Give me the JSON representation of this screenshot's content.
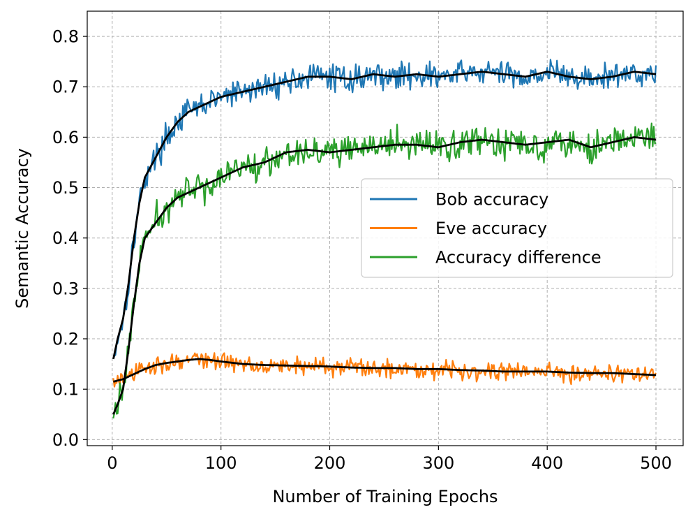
{
  "chart_data": {
    "type": "line",
    "title": "",
    "xlabel": "Number of Training Epochs",
    "ylabel": "Semantic Accuracy",
    "xlim": [
      -23,
      525
    ],
    "ylim": [
      -0.012,
      0.85
    ],
    "xticks": [
      0,
      100,
      200,
      300,
      400,
      500
    ],
    "xtick_labels": [
      "0",
      "100",
      "200",
      "300",
      "400",
      "500"
    ],
    "yticks": [
      0.0,
      0.1,
      0.2,
      0.3,
      0.4,
      0.5,
      0.6,
      0.7,
      0.8
    ],
    "ytick_labels": [
      "0.0",
      "0.1",
      "0.2",
      "0.3",
      "0.4",
      "0.5",
      "0.6",
      "0.7",
      "0.8"
    ],
    "grid": true,
    "legend_position": "center-right",
    "series": [
      {
        "name": "Bob accuracy",
        "color": "#1f77b4",
        "noise": 0.013,
        "x": [
          1,
          5,
          10,
          15,
          20,
          25,
          30,
          40,
          50,
          60,
          70,
          80,
          90,
          100,
          120,
          140,
          160,
          180,
          200,
          220,
          240,
          260,
          280,
          300,
          320,
          340,
          360,
          380,
          400,
          420,
          440,
          460,
          480,
          500
        ],
        "values": [
          0.16,
          0.2,
          0.24,
          0.31,
          0.4,
          0.47,
          0.52,
          0.56,
          0.6,
          0.63,
          0.65,
          0.66,
          0.67,
          0.68,
          0.69,
          0.7,
          0.71,
          0.72,
          0.72,
          0.715,
          0.725,
          0.72,
          0.725,
          0.72,
          0.725,
          0.73,
          0.725,
          0.72,
          0.73,
          0.72,
          0.715,
          0.72,
          0.73,
          0.725
        ]
      },
      {
        "name": "Eve accuracy",
        "color": "#ff7f0e",
        "noise": 0.009,
        "x": [
          1,
          10,
          20,
          30,
          40,
          50,
          60,
          70,
          80,
          90,
          100,
          120,
          140,
          160,
          180,
          200,
          220,
          240,
          260,
          280,
          300,
          320,
          340,
          360,
          380,
          400,
          420,
          440,
          460,
          480,
          500
        ],
        "values": [
          0.115,
          0.12,
          0.13,
          0.14,
          0.148,
          0.152,
          0.155,
          0.158,
          0.16,
          0.158,
          0.155,
          0.15,
          0.148,
          0.147,
          0.146,
          0.145,
          0.143,
          0.142,
          0.142,
          0.14,
          0.14,
          0.138,
          0.137,
          0.135,
          0.135,
          0.135,
          0.133,
          0.132,
          0.132,
          0.13,
          0.128
        ]
      },
      {
        "name": "Accuracy difference",
        "color": "#2ca02c",
        "noise": 0.015,
        "x": [
          1,
          5,
          10,
          15,
          20,
          25,
          30,
          40,
          50,
          60,
          70,
          80,
          90,
          100,
          120,
          140,
          160,
          180,
          200,
          220,
          240,
          260,
          280,
          300,
          320,
          340,
          360,
          380,
          400,
          420,
          440,
          460,
          480,
          500
        ],
        "values": [
          0.05,
          0.07,
          0.1,
          0.18,
          0.27,
          0.35,
          0.4,
          0.43,
          0.46,
          0.48,
          0.49,
          0.5,
          0.51,
          0.52,
          0.54,
          0.55,
          0.57,
          0.575,
          0.57,
          0.575,
          0.58,
          0.585,
          0.585,
          0.58,
          0.59,
          0.595,
          0.59,
          0.585,
          0.59,
          0.595,
          0.58,
          0.59,
          0.6,
          0.595
        ]
      }
    ],
    "smoothed_color": "#000000"
  }
}
